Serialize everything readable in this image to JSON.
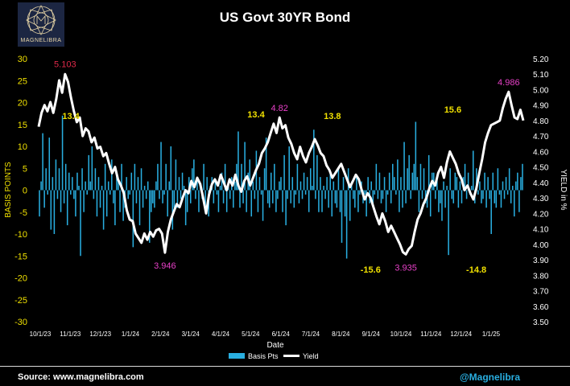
{
  "header": {
    "title": "US Govt 30YR Bond",
    "logo_text": "MAGNELIBRA",
    "logo_icon": "magnelibra-logo-icon"
  },
  "footer": {
    "source": "Source: www.magnelibra.com",
    "handle": "@Magnelibra"
  },
  "colors": {
    "bars": "#29aee0",
    "line": "#ffffff",
    "left_ticks": "#f0e000",
    "right_ticks": "#ffffff",
    "label_high": "#e0294a",
    "label_low": "#e840c8",
    "label_bp": "#f0e000",
    "background": "#000000"
  },
  "chart_data": {
    "type": "bar+line",
    "title": "US Govt 30YR Bond",
    "xlabel": "Date",
    "ylabel_left": "BASIS POINTS",
    "ylabel_right": "YIELD in %",
    "ylim_left": [
      -30,
      30
    ],
    "ylim_right": [
      3.5,
      5.2
    ],
    "yticks_left": [
      "30",
      "25",
      "20",
      "15",
      "10",
      "5",
      "0",
      "-5",
      "-10",
      "-15",
      "-20",
      "-25",
      "-30"
    ],
    "yticks_right": [
      "5.20",
      "5.10",
      "5.00",
      "4.90",
      "4.80",
      "4.70",
      "4.60",
      "4.50",
      "4.40",
      "4.30",
      "4.20",
      "4.10",
      "4.00",
      "3.90",
      "3.80",
      "3.70",
      "3.60",
      "3.50"
    ],
    "xticks": [
      "10/1/23",
      "11/1/23",
      "12/1/23",
      "1/1/24",
      "2/1/24",
      "3/1/24",
      "4/1/24",
      "5/1/24",
      "6/1/24",
      "7/1/24",
      "8/1/24",
      "9/1/24",
      "10/1/24",
      "11/1/24",
      "12/1/24",
      "1/1/25"
    ],
    "legend": [
      {
        "name": "Basis Pts",
        "type": "bar"
      },
      {
        "name": "Yield",
        "type": "line"
      }
    ],
    "legend_position": "bottom-center",
    "yield_series": {
      "name": "Yield",
      "points": [
        [
          0,
          4.76
        ],
        [
          2,
          4.85
        ],
        [
          4,
          4.9
        ],
        [
          6,
          4.86
        ],
        [
          8,
          4.92
        ],
        [
          10,
          4.85
        ],
        [
          12,
          4.94
        ],
        [
          14,
          5.06
        ],
        [
          16,
          4.98
        ],
        [
          18,
          5.1
        ],
        [
          20,
          5.05
        ],
        [
          22,
          4.95
        ],
        [
          24,
          4.86
        ],
        [
          26,
          4.79
        ],
        [
          28,
          4.82
        ],
        [
          30,
          4.7
        ],
        [
          32,
          4.75
        ],
        [
          34,
          4.73
        ],
        [
          36,
          4.66
        ],
        [
          38,
          4.69
        ],
        [
          40,
          4.62
        ],
        [
          42,
          4.63
        ],
        [
          44,
          4.57
        ],
        [
          46,
          4.59
        ],
        [
          48,
          4.52
        ],
        [
          50,
          4.46
        ],
        [
          52,
          4.5
        ],
        [
          54,
          4.42
        ],
        [
          56,
          4.38
        ],
        [
          58,
          4.33
        ],
        [
          60,
          4.22
        ],
        [
          62,
          4.16
        ],
        [
          64,
          4.15
        ],
        [
          66,
          4.07
        ],
        [
          68,
          4.04
        ],
        [
          70,
          4.01
        ],
        [
          72,
          4.07
        ],
        [
          74,
          4.03
        ],
        [
          76,
          4.08
        ],
        [
          78,
          4.05
        ],
        [
          80,
          4.09
        ],
        [
          82,
          4.1
        ],
        [
          84,
          4.07
        ],
        [
          86,
          3.946
        ],
        [
          88,
          4.08
        ],
        [
          90,
          4.16
        ],
        [
          92,
          4.21
        ],
        [
          94,
          4.26
        ],
        [
          96,
          4.24
        ],
        [
          98,
          4.3
        ],
        [
          100,
          4.35
        ],
        [
          102,
          4.33
        ],
        [
          104,
          4.41
        ],
        [
          106,
          4.37
        ],
        [
          108,
          4.43
        ],
        [
          110,
          4.39
        ],
        [
          112,
          4.3
        ],
        [
          114,
          4.2
        ],
        [
          116,
          4.32
        ],
        [
          118,
          4.39
        ],
        [
          120,
          4.42
        ],
        [
          122,
          4.38
        ],
        [
          124,
          4.45
        ],
        [
          126,
          4.4
        ],
        [
          128,
          4.35
        ],
        [
          130,
          4.42
        ],
        [
          132,
          4.38
        ],
        [
          134,
          4.45
        ],
        [
          136,
          4.38
        ],
        [
          138,
          4.34
        ],
        [
          140,
          4.41
        ],
        [
          142,
          4.44
        ],
        [
          144,
          4.38
        ],
        [
          146,
          4.43
        ],
        [
          148,
          4.48
        ],
        [
          150,
          4.52
        ],
        [
          152,
          4.59
        ],
        [
          154,
          4.62
        ],
        [
          156,
          4.66
        ],
        [
          158,
          4.72
        ],
        [
          160,
          4.78
        ],
        [
          162,
          4.72
        ],
        [
          164,
          4.82
        ],
        [
          166,
          4.75
        ],
        [
          168,
          4.77
        ],
        [
          170,
          4.69
        ],
        [
          172,
          4.65
        ],
        [
          174,
          4.59
        ],
        [
          176,
          4.55
        ],
        [
          178,
          4.63
        ],
        [
          180,
          4.57
        ],
        [
          182,
          4.53
        ],
        [
          184,
          4.59
        ],
        [
          186,
          4.63
        ],
        [
          188,
          4.68
        ],
        [
          190,
          4.64
        ],
        [
          192,
          4.59
        ],
        [
          194,
          4.57
        ],
        [
          196,
          4.51
        ],
        [
          198,
          4.48
        ],
        [
          200,
          4.43
        ],
        [
          202,
          4.46
        ],
        [
          204,
          4.49
        ],
        [
          206,
          4.52
        ],
        [
          208,
          4.47
        ],
        [
          210,
          4.42
        ],
        [
          212,
          4.37
        ],
        [
          214,
          4.41
        ],
        [
          216,
          4.45
        ],
        [
          218,
          4.42
        ],
        [
          220,
          4.35
        ],
        [
          222,
          4.29
        ],
        [
          224,
          4.33
        ],
        [
          226,
          4.3
        ],
        [
          228,
          4.24
        ],
        [
          230,
          4.18
        ],
        [
          232,
          4.13
        ],
        [
          234,
          4.2
        ],
        [
          236,
          4.15
        ],
        [
          238,
          4.08
        ],
        [
          240,
          4.12
        ],
        [
          242,
          4.08
        ],
        [
          244,
          4.04
        ],
        [
          246,
          4.0
        ],
        [
          248,
          3.95
        ],
        [
          250,
          3.935
        ],
        [
          252,
          3.97
        ],
        [
          254,
          3.99
        ],
        [
          256,
          4.08
        ],
        [
          258,
          4.16
        ],
        [
          260,
          4.2
        ],
        [
          262,
          4.26
        ],
        [
          264,
          4.3
        ],
        [
          266,
          4.36
        ],
        [
          268,
          4.41
        ],
        [
          270,
          4.38
        ],
        [
          272,
          4.46
        ],
        [
          274,
          4.5
        ],
        [
          276,
          4.43
        ],
        [
          278,
          4.53
        ],
        [
          280,
          4.6
        ],
        [
          282,
          4.56
        ],
        [
          284,
          4.52
        ],
        [
          286,
          4.46
        ],
        [
          288,
          4.42
        ],
        [
          290,
          4.35
        ],
        [
          292,
          4.38
        ],
        [
          294,
          4.33
        ],
        [
          296,
          4.29
        ],
        [
          298,
          4.36
        ],
        [
          300,
          4.46
        ],
        [
          302,
          4.55
        ],
        [
          304,
          4.66
        ],
        [
          306,
          4.72
        ],
        [
          308,
          4.77
        ],
        [
          310,
          4.78
        ],
        [
          312,
          4.79
        ],
        [
          314,
          4.8
        ],
        [
          316,
          4.88
        ],
        [
          318,
          4.94
        ],
        [
          320,
          4.986
        ],
        [
          322,
          4.9
        ],
        [
          324,
          4.82
        ],
        [
          326,
          4.81
        ],
        [
          328,
          4.87
        ],
        [
          330,
          4.8
        ]
      ]
    },
    "basis_pts_series": {
      "name": "Basis Pts",
      "values": [
        -6,
        2,
        13,
        -4,
        5,
        -1,
        12,
        -9,
        3,
        -10,
        7,
        -2,
        5,
        -5,
        17,
        -3,
        6,
        -8,
        4,
        -1,
        3,
        -2,
        -6,
        4,
        1,
        -15,
        5,
        -5,
        2,
        -1,
        8,
        2,
        10,
        -2,
        5,
        -6,
        3,
        -4,
        1,
        -9,
        6,
        -6,
        2,
        -1,
        7,
        -3,
        -8,
        4,
        2,
        -5,
        6,
        -7,
        -4,
        3,
        -2,
        -1,
        4,
        -13,
        6,
        -3,
        3,
        -8,
        5,
        -4,
        1,
        -2,
        2,
        -12,
        -5,
        -3,
        -4,
        2,
        6,
        -2,
        11,
        -3,
        -1,
        6,
        -6,
        2,
        10,
        -9,
        -4,
        7,
        -4,
        3,
        -2,
        4,
        1,
        -8,
        -5,
        3,
        -3,
        5,
        7,
        -2,
        3,
        -5,
        1,
        -2,
        6,
        -4,
        3,
        -6,
        1,
        3,
        -3,
        2,
        -1,
        -5,
        1,
        4,
        -3,
        6,
        -5,
        1,
        -2,
        3,
        -4,
        2,
        6,
        13.4,
        -4,
        6,
        -3,
        11,
        -5,
        4,
        7,
        -6,
        2,
        -2,
        9,
        -5,
        3,
        -1,
        -7,
        5,
        12,
        -3,
        -4,
        4,
        -3,
        6,
        -5,
        -2,
        2,
        3,
        -5,
        8,
        -8,
        -2,
        10,
        -3,
        3,
        -4,
        -1,
        6,
        -3,
        2,
        -2,
        4,
        -1,
        3,
        -5,
        5,
        1,
        13.8,
        -2,
        8,
        -5,
        3,
        -5,
        1,
        -2,
        3,
        -4,
        4,
        -6,
        2,
        -3,
        -4,
        5,
        -5,
        -12,
        3,
        -6,
        -15.6,
        5,
        -7,
        2,
        -2,
        -4,
        3,
        -5,
        -1,
        2,
        -3,
        -1,
        -6,
        3,
        -3,
        2,
        -4,
        -1,
        6,
        -2,
        4,
        -3,
        -2,
        3,
        -5,
        -1,
        4,
        -3,
        6,
        3,
        -1,
        7,
        -5,
        3,
        -4,
        11,
        -3,
        5,
        8,
        -2,
        4,
        6,
        15.6,
        3,
        -5,
        6,
        -2,
        5,
        -3,
        -4,
        8,
        -6,
        4,
        4,
        -2,
        3,
        -5,
        -3,
        -7,
        2,
        -4,
        1,
        -14.8,
        5,
        -2,
        -3,
        4,
        3,
        -4,
        2,
        -3,
        3,
        6,
        -2,
        4,
        -1,
        1,
        9,
        -3,
        5,
        -1,
        2,
        -3,
        -2,
        4,
        -4,
        3,
        -2,
        -10,
        4,
        -3,
        -4,
        5,
        -1,
        -4,
        2,
        -2,
        3,
        -1,
        5,
        -3,
        1,
        -6,
        2,
        4,
        -5,
        3,
        6
      ]
    },
    "annotations": [
      {
        "text": "5.103",
        "kind": "yield_high",
        "x": 18,
        "y": 5.103,
        "color": "label_high"
      },
      {
        "text": "13.4",
        "kind": "basis_pts",
        "x": 22,
        "y": 4.79,
        "color": "label_bp"
      },
      {
        "text": "3.946",
        "kind": "yield_low",
        "x": 86,
        "y": 3.946,
        "color": "label_low"
      },
      {
        "text": "13.4",
        "kind": "basis_pts",
        "x": 148,
        "y": 4.8,
        "color": "label_bp"
      },
      {
        "text": "4.82",
        "kind": "yield_high",
        "x": 164,
        "y": 4.82,
        "color": "label_low"
      },
      {
        "text": "13.8",
        "kind": "basis_pts",
        "x": 200,
        "y": 4.79,
        "color": "label_bp"
      },
      {
        "text": "-15.6",
        "kind": "basis_pts",
        "x": 226,
        "y": 3.92,
        "color": "label_bp"
      },
      {
        "text": "3.935",
        "kind": "yield_low",
        "x": 250,
        "y": 3.935,
        "color": "label_low"
      },
      {
        "text": "15.6",
        "kind": "basis_pts",
        "x": 282,
        "y": 4.83,
        "color": "label_bp"
      },
      {
        "text": "-14.8",
        "kind": "basis_pts",
        "x": 298,
        "y": 3.92,
        "color": "label_bp"
      },
      {
        "text": "4.986",
        "kind": "yield_high",
        "x": 320,
        "y": 4.986,
        "color": "label_low"
      }
    ]
  }
}
